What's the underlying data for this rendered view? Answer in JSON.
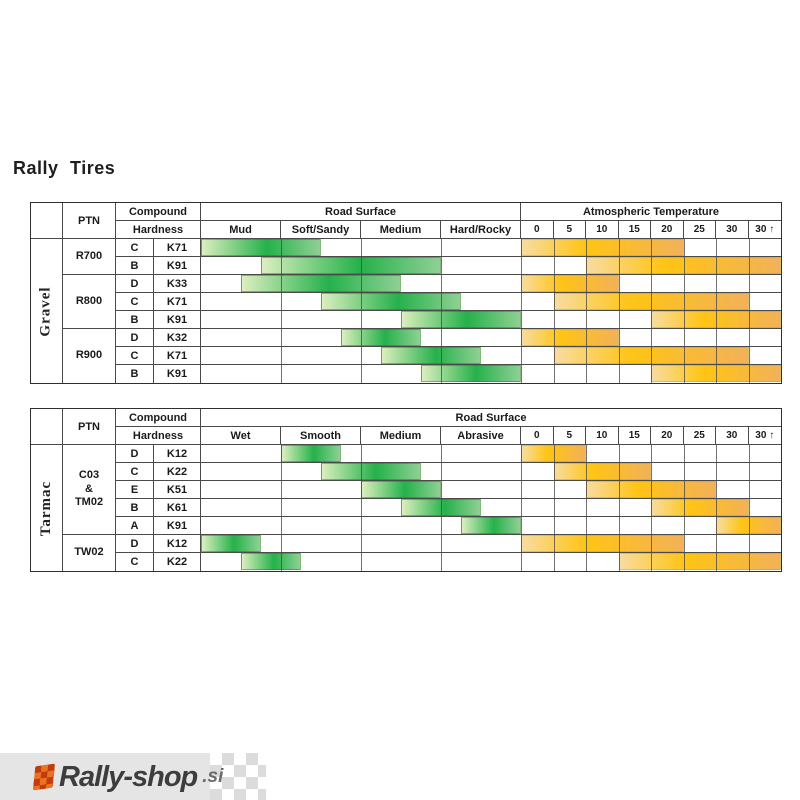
{
  "page_title": "Rally Tires",
  "footer": {
    "logo_text": "Rally-shop",
    "logo_tld": ".si"
  },
  "colors": {
    "bar_green_dark": "#25b14b",
    "bar_green_light": "#dcefbf",
    "bar_orange_bright": "#ffc414",
    "bar_orange_light": "#f8dca0",
    "grid_line": "#4a4a4a",
    "logo_orange": "#e87320",
    "footer_gray": "#e5e5e5"
  },
  "chart_data": [
    {
      "type": "table",
      "category": "Gravel",
      "header": {
        "ptn": "PTN",
        "compound": "Compound",
        "hardness": "Hardness",
        "road_surface": "Road Surface",
        "atmospheric_temperature": "Atmospheric Temperature"
      },
      "temperature_header_merged_into_road_surface": false,
      "surface_columns": [
        "Mud",
        "Soft/Sandy",
        "Medium",
        "Hard/Rocky"
      ],
      "temperature_columns": [
        "0",
        "5",
        "10",
        "15",
        "20",
        "25",
        "30",
        "30 ↑"
      ],
      "ptn_groups": [
        {
          "label": "R700",
          "rows": 2
        },
        {
          "label": "R800",
          "rows": 3
        },
        {
          "label": "R900",
          "rows": 3
        }
      ],
      "rows": [
        {
          "hardness": "C",
          "code": "K71",
          "surface_range_cols": [
            0,
            1.5
          ],
          "surface_span": "Mud to mid Soft/Sandy",
          "temp_range_cells": [
            0,
            5
          ],
          "temp_span": "0 to 20"
        },
        {
          "hardness": "B",
          "code": "K91",
          "surface_range_cols": [
            0.75,
            3
          ],
          "surface_span": "late Mud to end Medium",
          "temp_range_cells": [
            2,
            8
          ],
          "temp_span": "10 to 30↑"
        },
        {
          "hardness": "D",
          "code": "K33",
          "surface_range_cols": [
            0.5,
            2.5
          ],
          "surface_span": "mid Mud to mid Medium",
          "temp_range_cells": [
            0,
            3
          ],
          "temp_span": "0 to 10"
        },
        {
          "hardness": "C",
          "code": "K71",
          "surface_range_cols": [
            1.5,
            3.25
          ],
          "surface_span": "mid Soft/Sandy to early Hard/Rocky",
          "temp_range_cells": [
            1,
            7
          ],
          "temp_span": "5 to 30"
        },
        {
          "hardness": "B",
          "code": "K91",
          "surface_range_cols": [
            2.5,
            4
          ],
          "surface_span": "mid Medium to end Hard/Rocky",
          "temp_range_cells": [
            4,
            8
          ],
          "temp_span": "20 to 30↑"
        },
        {
          "hardness": "D",
          "code": "K32",
          "surface_range_cols": [
            1.75,
            2.75
          ],
          "surface_span": "late Soft/Sandy to late Medium",
          "temp_range_cells": [
            0,
            3
          ],
          "temp_span": "0 to 10"
        },
        {
          "hardness": "C",
          "code": "K71",
          "surface_range_cols": [
            2.25,
            3.5
          ],
          "surface_span": "Medium to mid Hard/Rocky",
          "temp_range_cells": [
            1,
            7
          ],
          "temp_span": "5 to 30"
        },
        {
          "hardness": "B",
          "code": "K91",
          "surface_range_cols": [
            2.75,
            4
          ],
          "surface_span": "late Medium to end Hard/Rocky",
          "temp_range_cells": [
            4,
            8
          ],
          "temp_span": "20 to 30↑"
        }
      ]
    },
    {
      "type": "table",
      "category": "Tarmac",
      "header": {
        "ptn": "PTN",
        "compound": "Compound",
        "hardness": "Hardness",
        "road_surface": "Road Surface",
        "atmospheric_temperature": ""
      },
      "temperature_header_merged_into_road_surface": true,
      "surface_columns": [
        "Wet",
        "Smooth",
        "Medium",
        "Abrasive"
      ],
      "temperature_columns": [
        "0",
        "5",
        "10",
        "15",
        "20",
        "25",
        "30",
        "30 ↑"
      ],
      "ptn_groups": [
        {
          "label": "C03\n&\nTM02",
          "rows": 5
        },
        {
          "label": "TW02",
          "rows": 2
        }
      ],
      "rows": [
        {
          "hardness": "D",
          "code": "K12",
          "surface_range_cols": [
            1,
            1.75
          ],
          "surface_span": "Smooth",
          "temp_range_cells": [
            0,
            2
          ],
          "temp_span": "0 to 5"
        },
        {
          "hardness": "C",
          "code": "K22",
          "surface_range_cols": [
            1.5,
            2.75
          ],
          "surface_span": "mid Smooth to late Medium",
          "temp_range_cells": [
            1,
            4
          ],
          "temp_span": "5 to 15"
        },
        {
          "hardness": "E",
          "code": "K51",
          "surface_range_cols": [
            2,
            3
          ],
          "surface_span": "Medium",
          "temp_range_cells": [
            2,
            6
          ],
          "temp_span": "10 to 25"
        },
        {
          "hardness": "B",
          "code": "K61",
          "surface_range_cols": [
            2.5,
            3.5
          ],
          "surface_span": "mid Medium to mid Abrasive",
          "temp_range_cells": [
            4,
            7
          ],
          "temp_span": "20 to 30"
        },
        {
          "hardness": "A",
          "code": "K91",
          "surface_range_cols": [
            3.25,
            4
          ],
          "surface_span": "Abrasive",
          "temp_range_cells": [
            6,
            8
          ],
          "temp_span": "30 to 30↑"
        },
        {
          "hardness": "D",
          "code": "K12",
          "surface_range_cols": [
            0,
            0.75
          ],
          "surface_span": "Wet",
          "temp_range_cells": [
            0,
            5
          ],
          "temp_span": "0 to 20"
        },
        {
          "hardness": "C",
          "code": "K22",
          "surface_range_cols": [
            0.5,
            1.25
          ],
          "surface_span": "mid Wet to early Smooth",
          "temp_range_cells": [
            3,
            8
          ],
          "temp_span": "15 to 30↑"
        }
      ]
    }
  ]
}
